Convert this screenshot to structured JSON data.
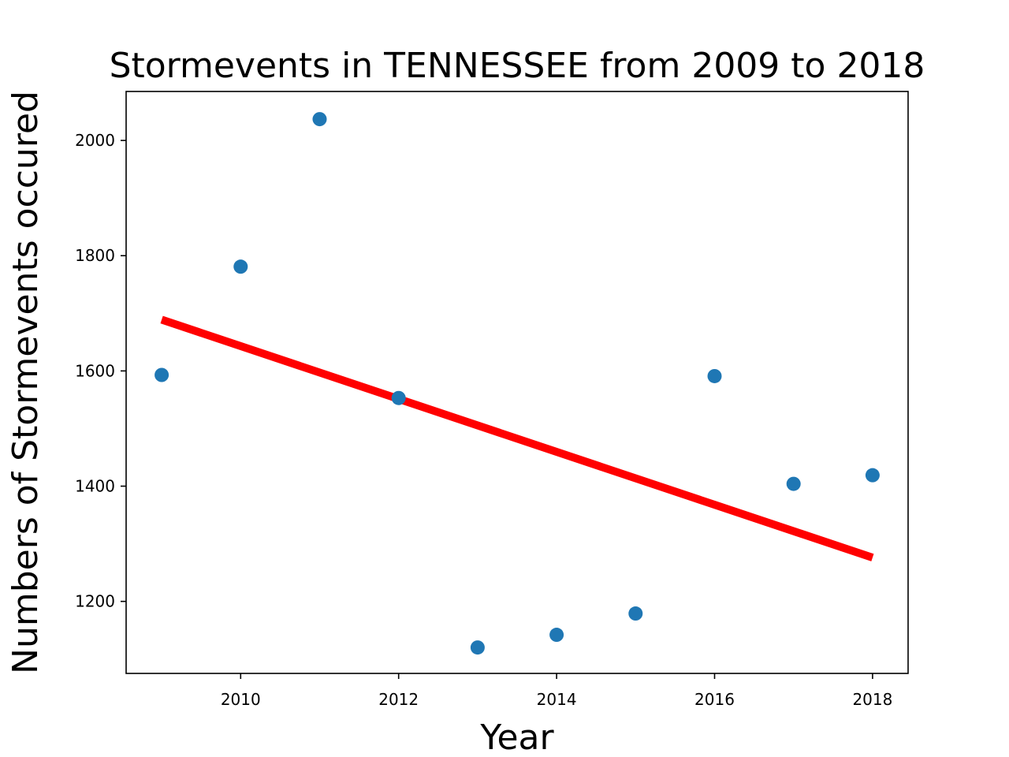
{
  "chart_data": {
    "type": "scatter",
    "title": "Stormevents in TENNESSEE from 2009 to 2018",
    "xlabel": "Year",
    "ylabel": "Numbers of Stormevents occured",
    "xlim": [
      2008.55,
      2018.45
    ],
    "ylim": [
      1075,
      2085
    ],
    "x_ticks": [
      2010,
      2012,
      2014,
      2016,
      2018
    ],
    "y_ticks": [
      1200,
      1400,
      1600,
      1800,
      2000
    ],
    "grid": false,
    "series": [
      {
        "type": "scatter",
        "color": "#1f77b4",
        "x": [
          2009,
          2010,
          2011,
          2012,
          2013,
          2014,
          2015,
          2016,
          2017,
          2018
        ],
        "y": [
          1593,
          1781,
          2037,
          1553,
          1120,
          1142,
          1179,
          1591,
          1404,
          1419
        ]
      },
      {
        "type": "line",
        "color": "#ff0000",
        "x": [
          2009,
          2018
        ],
        "y": [
          1689,
          1276
        ]
      }
    ]
  }
}
